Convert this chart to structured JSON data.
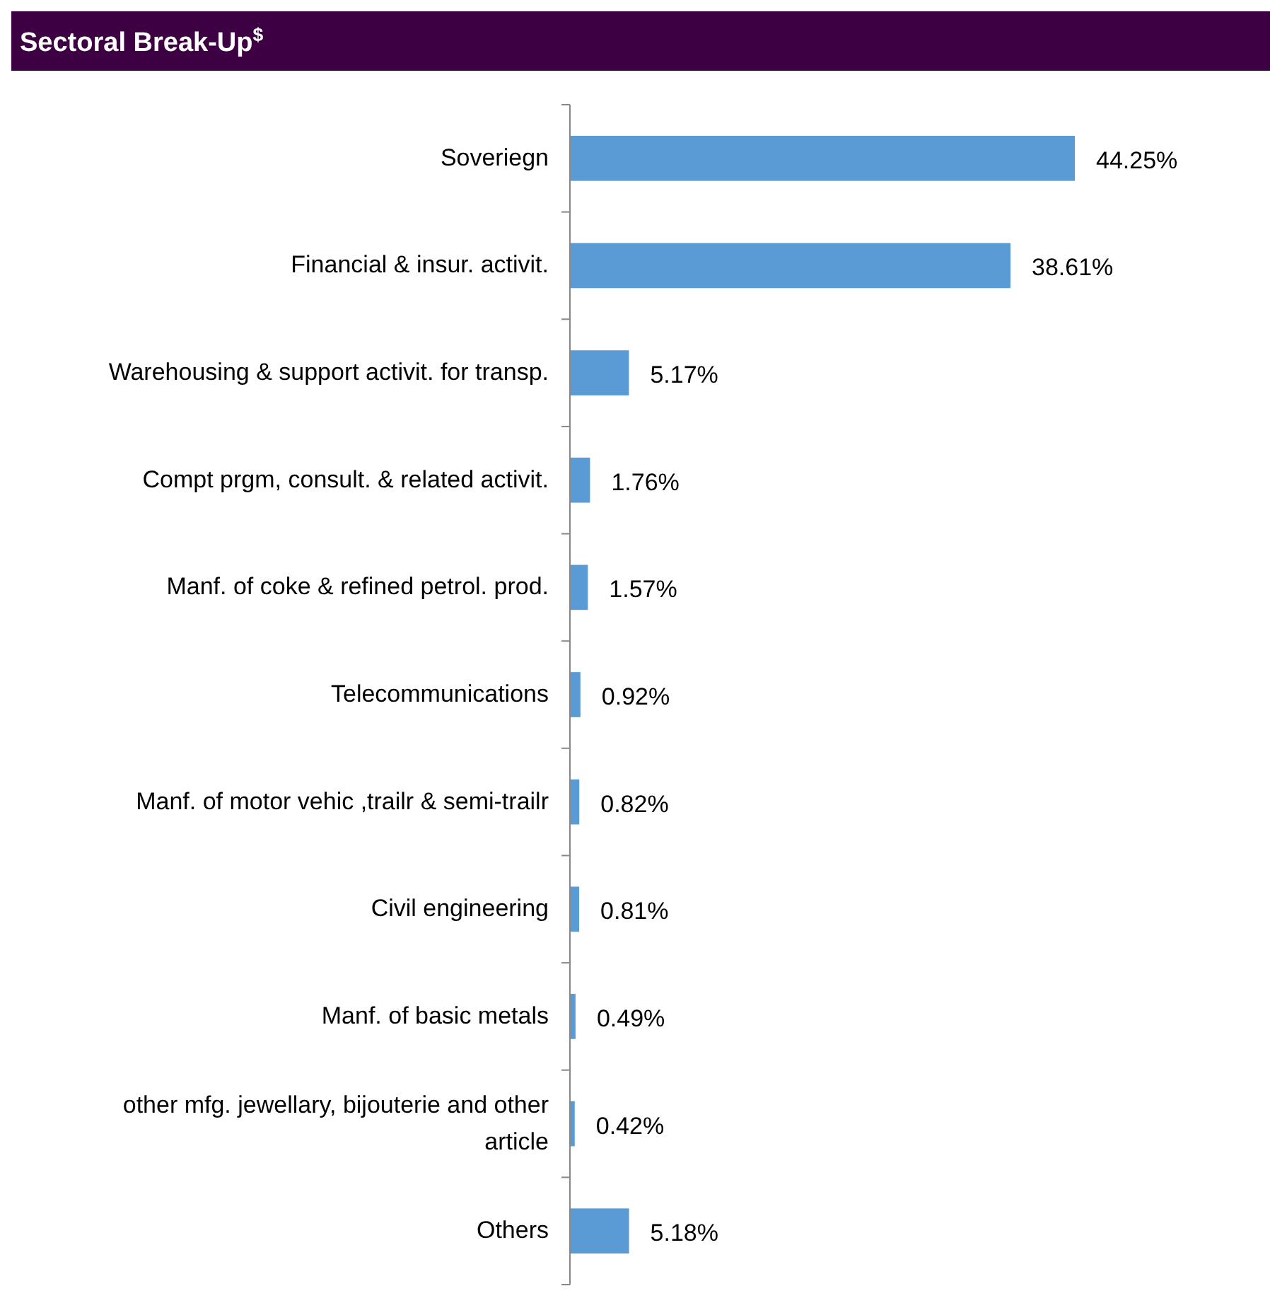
{
  "chart_data": {
    "type": "bar",
    "orientation": "horizontal",
    "title": "Sectoral Break-Up$^{$}$",
    "categories": [
      "Soveriegn",
      "Financial & insur. activit.",
      "Warehousing & support activit. for transp.",
      "Compt prgm, consult. & related activit.",
      "Manf. of coke & refined petrol. prod.",
      "Telecommunications",
      "Manf. of motor vehic ,trailr & semi-trailr",
      "Civil engineering",
      "Manf. of basic metals",
      "other mfg. jewellary, bijouterie and other article",
      "Others"
    ],
    "values": [
      44.25,
      38.61,
      5.17,
      1.76,
      1.57,
      0.92,
      0.82,
      0.81,
      0.49,
      0.42,
      5.18
    ],
    "value_labels": [
      "44.25%",
      "38.61%",
      "5.17%",
      "1.76%",
      "1.57%",
      "0.92%",
      "0.82%",
      "0.81%",
      "0.49%",
      "0.42%",
      "5.18%"
    ],
    "color": "#5b9bd5"
  }
}
